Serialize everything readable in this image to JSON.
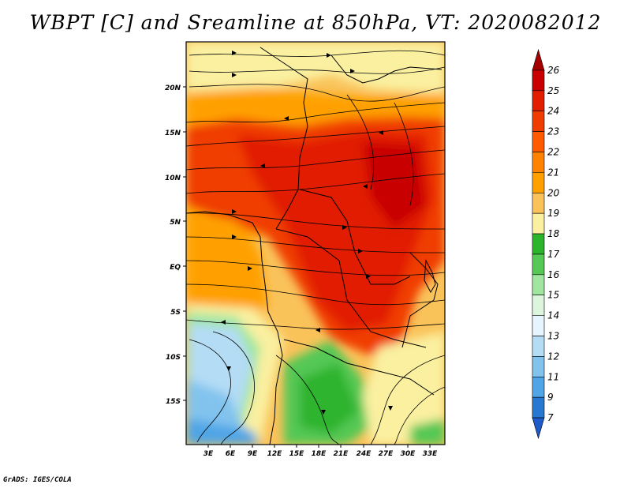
{
  "title": "WBPT [C] and Sreamline at 850hPa, VT: 2020082012",
  "footer": "GrADS: IGES/COLA",
  "map": {
    "lat_labels": [
      "20N",
      "15N",
      "10N",
      "5N",
      "EQ",
      "5S",
      "10S",
      "15S"
    ],
    "lon_labels": [
      "3E",
      "6E",
      "9E",
      "12E",
      "15E",
      "18E",
      "21E",
      "24E",
      "27E",
      "30E",
      "33E"
    ]
  },
  "colorbar": {
    "labels": [
      "26",
      "25",
      "24",
      "23",
      "22",
      "21",
      "20",
      "19",
      "18",
      "17",
      "16",
      "15",
      "14",
      "13",
      "12",
      "11",
      "9",
      "7"
    ],
    "colors": [
      "#a50000",
      "#c80000",
      "#e11e00",
      "#f03c00",
      "#ff5a00",
      "#ff8200",
      "#ffa000",
      "#fac35a",
      "#faf0a0",
      "#2db42d",
      "#55c855",
      "#a0e6a0",
      "#dcf5dc",
      "#e6f5ff",
      "#b4dcf5",
      "#82c3ee",
      "#50a5e6",
      "#2878d2",
      "#1e5ac8"
    ]
  }
}
